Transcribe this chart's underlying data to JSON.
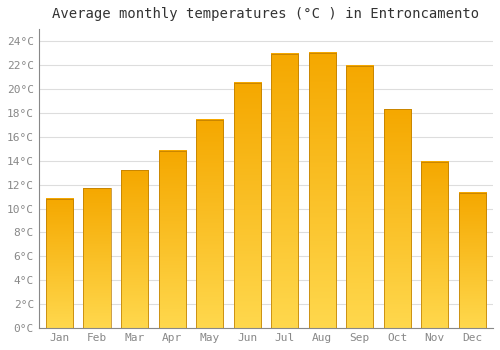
{
  "title": "Average monthly temperatures (°C ) in Entroncamento",
  "months": [
    "Jan",
    "Feb",
    "Mar",
    "Apr",
    "May",
    "Jun",
    "Jul",
    "Aug",
    "Sep",
    "Oct",
    "Nov",
    "Dec"
  ],
  "values": [
    10.8,
    11.7,
    13.2,
    14.8,
    17.4,
    20.5,
    22.9,
    23.0,
    21.9,
    18.3,
    13.9,
    11.3
  ],
  "bar_color_top": "#F5A800",
  "bar_color_bottom": "#FFD84D",
  "bar_edge_color": "#B87800",
  "ylim": [
    0,
    25
  ],
  "yticks": [
    0,
    2,
    4,
    6,
    8,
    10,
    12,
    14,
    16,
    18,
    20,
    22,
    24
  ],
  "ytick_labels": [
    "0°C",
    "2°C",
    "4°C",
    "6°C",
    "8°C",
    "10°C",
    "12°C",
    "14°C",
    "16°C",
    "18°C",
    "20°C",
    "22°C",
    "24°C"
  ],
  "background_color": "#FFFFFF",
  "grid_color": "#DDDDDD",
  "title_fontsize": 10,
  "tick_fontsize": 8,
  "font_family": "monospace"
}
